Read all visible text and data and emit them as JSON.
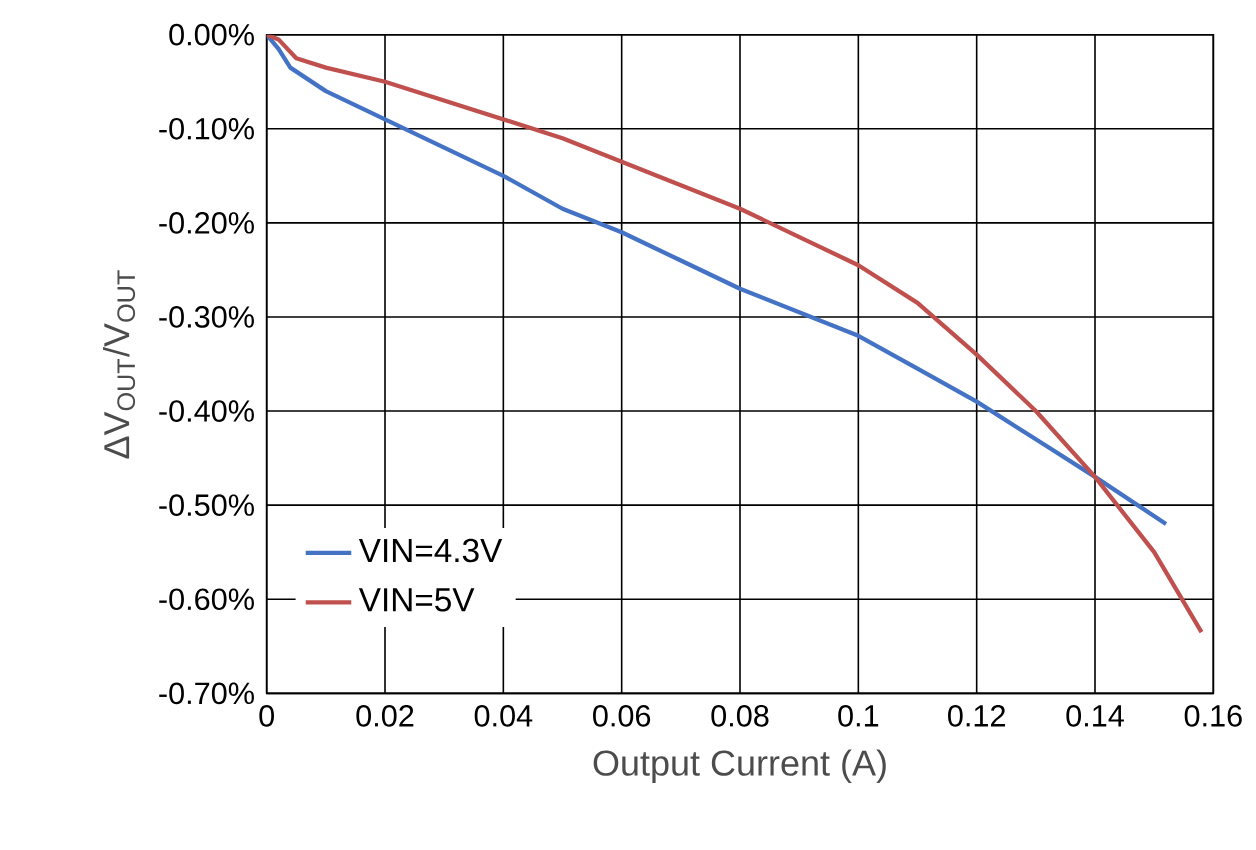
{
  "chart_data": {
    "type": "line",
    "xlabel": "Output Current (A)",
    "ylabel": "ΔV$_{OUT}$/V$_{OUT}$",
    "xlim": [
      0,
      0.16
    ],
    "ylim": [
      -0.7,
      0
    ],
    "xticks": [
      0,
      0.02,
      0.04,
      0.06,
      0.08,
      0.1,
      0.12,
      0.14,
      0.16
    ],
    "yticks": [
      {
        "value": 0,
        "label": "0.00%"
      },
      {
        "value": -0.1,
        "label": "-0.10%"
      },
      {
        "value": -0.2,
        "label": "-0.20%"
      },
      {
        "value": -0.3,
        "label": "-0.30%"
      },
      {
        "value": -0.4,
        "label": "-0.40%"
      },
      {
        "value": -0.5,
        "label": "-0.50%"
      },
      {
        "value": -0.6,
        "label": "-0.60%"
      },
      {
        "value": -0.7,
        "label": "-0.70%"
      }
    ],
    "grid": true,
    "legend": "bottom left",
    "marker": "none",
    "line_style": "solid",
    "series": [
      {
        "name": "VIN=4.3V",
        "color": "#4472c4",
        "x": [
          0,
          0.002,
          0.004,
          0.01,
          0.02,
          0.03,
          0.04,
          0.05,
          0.06,
          0.07,
          0.08,
          0.09,
          0.1,
          0.11,
          0.12,
          0.13,
          0.14,
          0.152
        ],
        "values": [
          0,
          -0.015,
          -0.035,
          -0.06,
          -0.09,
          -0.12,
          -0.15,
          -0.185,
          -0.21,
          -0.24,
          -0.27,
          -0.295,
          -0.32,
          -0.355,
          -0.39,
          -0.43,
          -0.47,
          -0.52
        ]
      },
      {
        "name": "VIN=5V",
        "color": "#c0504d",
        "x": [
          0,
          0.002,
          0.005,
          0.01,
          0.02,
          0.03,
          0.04,
          0.05,
          0.06,
          0.07,
          0.08,
          0.09,
          0.1,
          0.11,
          0.12,
          0.13,
          0.14,
          0.15,
          0.158
        ],
        "values": [
          0,
          -0.005,
          -0.025,
          -0.035,
          -0.05,
          -0.07,
          -0.09,
          -0.11,
          -0.135,
          -0.16,
          -0.185,
          -0.215,
          -0.245,
          -0.285,
          -0.34,
          -0.4,
          -0.47,
          -0.55,
          -0.635
        ]
      }
    ]
  }
}
